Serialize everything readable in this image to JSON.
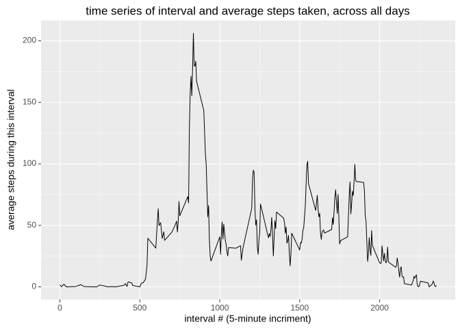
{
  "chart_data": {
    "type": "line",
    "title": "time series of interval and average steps taken, across all days",
    "x_label": "interval # (5-minute incriment)",
    "y_label": "average steps during this interval",
    "x": [
      0,
      10,
      25,
      40,
      55,
      100,
      130,
      150,
      200,
      230,
      250,
      300,
      320,
      350,
      400,
      410,
      420,
      425,
      430,
      440,
      450,
      455,
      500,
      510,
      520,
      535,
      545,
      550,
      600,
      610,
      615,
      620,
      630,
      640,
      650,
      655,
      700,
      720,
      730,
      735,
      740,
      745,
      750,
      800,
      805,
      810,
      815,
      820,
      825,
      830,
      835,
      840,
      845,
      850,
      855,
      900,
      910,
      915,
      925,
      930,
      935,
      940,
      945,
      1000,
      1005,
      1010,
      1015,
      1020,
      1025,
      1035,
      1040,
      1045,
      1050,
      1055,
      1100,
      1130,
      1135,
      1145,
      1200,
      1205,
      1210,
      1215,
      1220,
      1225,
      1230,
      1235,
      1240,
      1245,
      1250,
      1255,
      1300,
      1305,
      1310,
      1315,
      1320,
      1325,
      1330,
      1335,
      1340,
      1345,
      1350,
      1355,
      1400,
      1405,
      1410,
      1415,
      1420,
      1425,
      1430,
      1435,
      1440,
      1445,
      1450,
      1500,
      1505,
      1510,
      1515,
      1520,
      1525,
      1535,
      1540,
      1545,
      1550,
      1555,
      1600,
      1610,
      1615,
      1620,
      1625,
      1630,
      1635,
      1640,
      1645,
      1650,
      1655,
      1700,
      1705,
      1710,
      1715,
      1720,
      1725,
      1730,
      1735,
      1740,
      1745,
      1750,
      1755,
      1800,
      1805,
      1810,
      1815,
      1820,
      1825,
      1830,
      1835,
      1840,
      1845,
      1850,
      1855,
      1900,
      1905,
      1910,
      1915,
      1920,
      1925,
      1930,
      1935,
      1940,
      1945,
      1950,
      1955,
      2000,
      2005,
      2010,
      2015,
      2020,
      2025,
      2030,
      2035,
      2040,
      2045,
      2050,
      2055,
      2100,
      2105,
      2110,
      2115,
      2120,
      2125,
      2130,
      2135,
      2140,
      2145,
      2150,
      2155,
      2200,
      2205,
      2210,
      2215,
      2220,
      2225,
      2230,
      2235,
      2240,
      2245,
      2250,
      2255,
      2300,
      2305,
      2310,
      2315,
      2320,
      2325,
      2330,
      2335,
      2340,
      2345,
      2350,
      2355
    ],
    "values": [
      1.7,
      0.1,
      2.1,
      0,
      0.1,
      0.3,
      1.8,
      0.3,
      0,
      0,
      1.5,
      0,
      0.2,
      0,
      1.2,
      2.6,
      0.3,
      3.6,
      4.1,
      3.5,
      3.1,
      1.1,
      0,
      3,
      3.3,
      6.1,
      17.2,
      39.5,
      31.5,
      53.8,
      63.5,
      49.9,
      52.2,
      39.3,
      44.8,
      37.8,
      44.4,
      49.9,
      53.4,
      44.5,
      52.3,
      69.5,
      57.8,
      73.4,
      68.2,
      129.4,
      157.5,
      171.2,
      155.4,
      177.3,
      206.2,
      179.6,
      179.6,
      183.4,
      167,
      143.5,
      108.3,
      100,
      57,
      66,
      38,
      25,
      21,
      40.6,
      26.5,
      42.4,
      52.7,
      38.9,
      50.8,
      37.4,
      34.7,
      28.3,
      25.1,
      31.9,
      31.4,
      33.4,
      21.6,
      31.4,
      63.9,
      87.6,
      94.9,
      92.8,
      63.4,
      50.2,
      54.5,
      32.4,
      26.5,
      37.7,
      45.1,
      67.3,
      42.3,
      39.9,
      43.3,
      40.9,
      46.2,
      56.4,
      42.8,
      25.1,
      39.5,
      53.8,
      47.4,
      60.8,
      55.8,
      51.9,
      43.6,
      48.7,
      35.5,
      37.5,
      41.8,
      27.5,
      17.1,
      26.1,
      43.6,
      30,
      36.1,
      35.5,
      38.8,
      45.9,
      47.8,
      65.3,
      82.9,
      98.7,
      102.1,
      84,
      62.1,
      74.5,
      63.2,
      56.9,
      59.8,
      43.9,
      38.6,
      44.7,
      45.5,
      46.2,
      43.7,
      46.6,
      56.3,
      50.7,
      61.2,
      72.7,
      78.9,
      68.9,
      59.7,
      75.1,
      56.5,
      34.8,
      37.5,
      40.7,
      58,
      74.7,
      85.3,
      59.3,
      67.8,
      77.7,
      74.2,
      85.3,
      99.5,
      86.6,
      85.6,
      84.9,
      77.8,
      58,
      53.4,
      36.3,
      20.7,
      27.4,
      40,
      30.2,
      25.5,
      45.7,
      33.5,
      19.6,
      19,
      19.3,
      33.3,
      26.8,
      21.2,
      27.3,
      21.3,
      19.5,
      21.3,
      32.3,
      20.2,
      15.9,
      17.2,
      23.5,
      19.2,
      12.5,
      8,
      14.7,
      16.3,
      8.7,
      7.8,
      8.1,
      2.6,
      1.5,
      3.7,
      4.8,
      8.5,
      7.1,
      8.7,
      9.8,
      2.2,
      0.3,
      0.1,
      1.6,
      4.6,
      3.3,
      2.8,
      0,
      0.8,
      1,
      1.6,
      2.6,
      4.7,
      3.3,
      0.6,
      0.2,
      1.1
    ],
    "color": "#000000",
    "xlim": [
      -117.75,
      2472.75
    ],
    "xticks": [
      0,
      500,
      1000,
      1500,
      2000
    ],
    "ylim": [
      -10.31,
      216.48
    ],
    "yticks": [
      0,
      50,
      100,
      150,
      200
    ],
    "grid": true
  }
}
